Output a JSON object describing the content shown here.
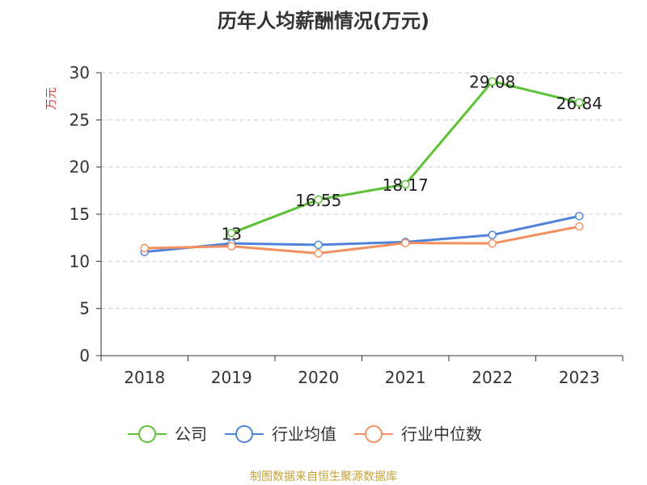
{
  "chart_data": {
    "type": "line",
    "title": "历年人均薪酬情况(万元)",
    "ylabel": "万元",
    "xlabel": "",
    "ylim": [
      0,
      30
    ],
    "yticks": [
      0,
      5,
      10,
      15,
      20,
      25,
      30
    ],
    "grid": true,
    "legend_position": "bottom",
    "categories": [
      "2018",
      "2019",
      "2020",
      "2021",
      "2022",
      "2023"
    ],
    "series": [
      {
        "name": "公司",
        "color": "#5cc134",
        "values": [
          null,
          13,
          16.55,
          18.17,
          29.08,
          26.84
        ],
        "labels": [
          "",
          "13",
          "16.55",
          "18.17",
          "29.08",
          "26.84"
        ]
      },
      {
        "name": "行业均值",
        "color": "#4f82d9",
        "values": [
          11.0,
          11.9,
          11.75,
          12.05,
          12.8,
          14.8
        ]
      },
      {
        "name": "行业中位数",
        "color": "#f4905f",
        "values": [
          11.4,
          11.6,
          10.85,
          11.95,
          11.9,
          13.7
        ]
      }
    ],
    "source": "制图数据来自恒生聚源数据库",
    "colors": {
      "ylabel": "#e53935",
      "source": "#c8a238",
      "axis": "#333333",
      "grid": "#cccccc"
    }
  }
}
